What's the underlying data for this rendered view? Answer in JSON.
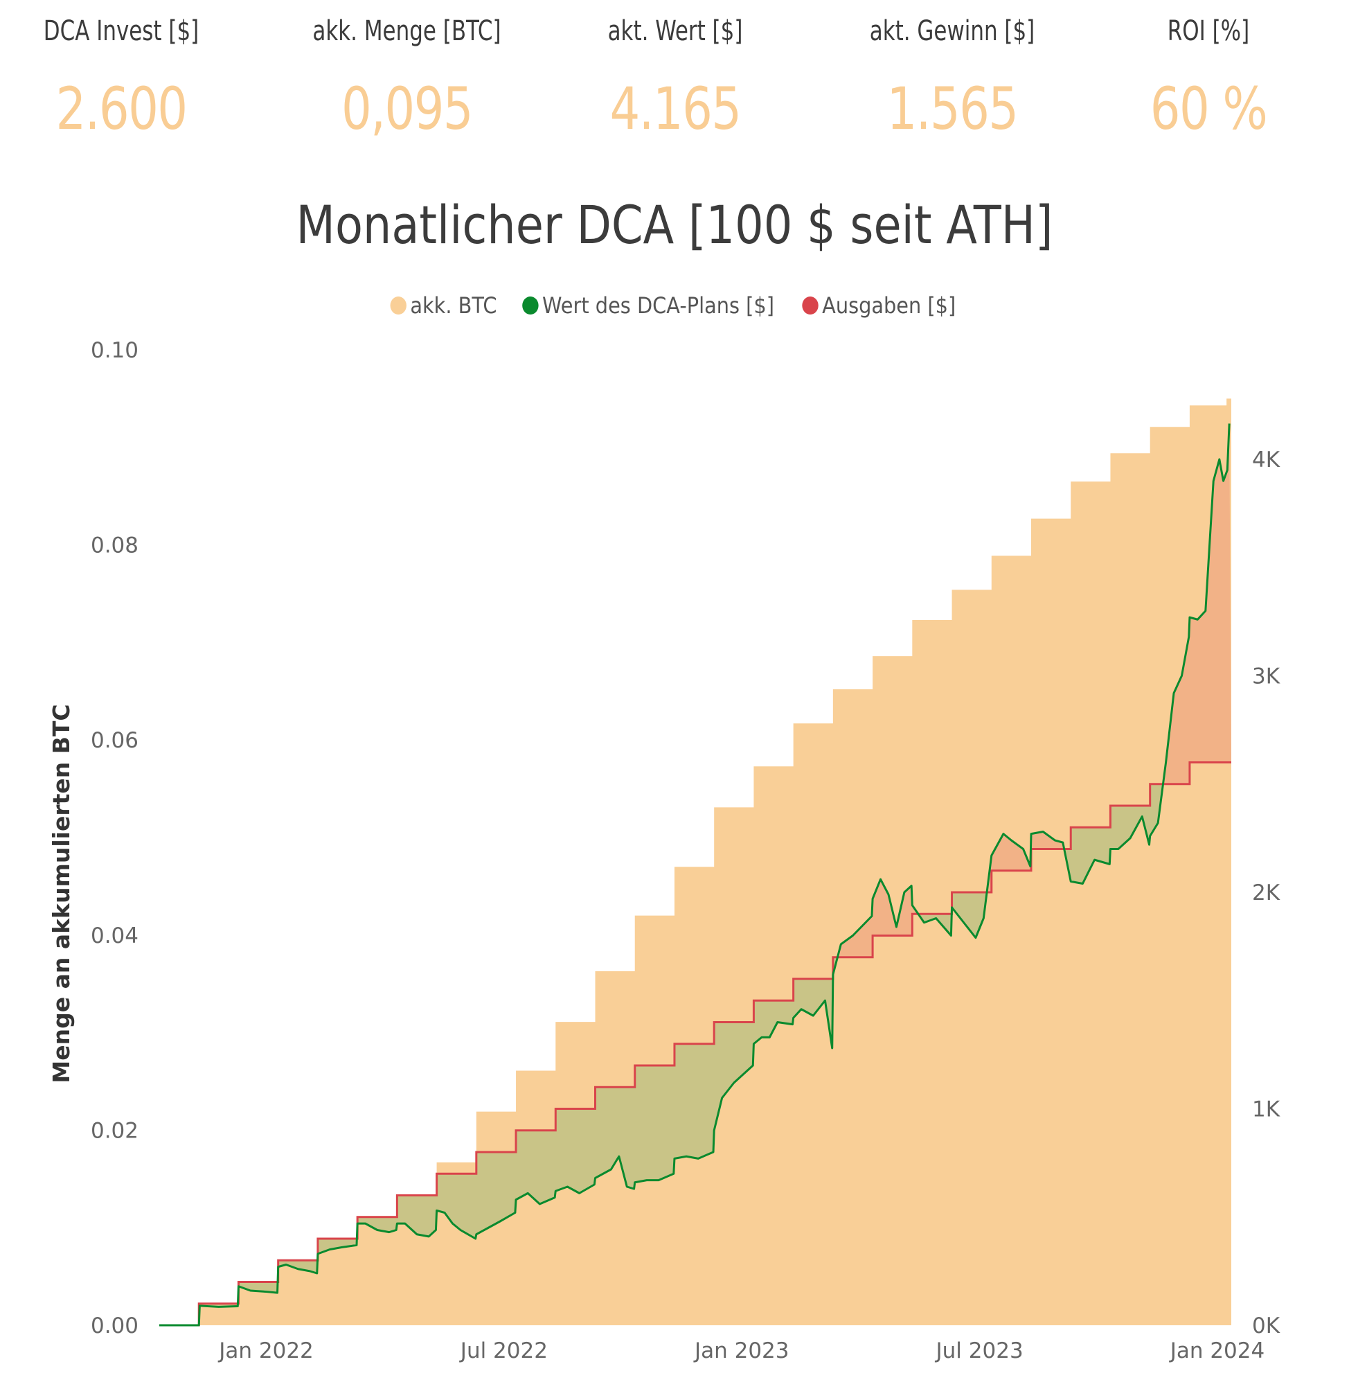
{
  "kpis": [
    {
      "label": "DCA Invest [$]",
      "value": "2.600"
    },
    {
      "label": "akk. Menge [BTC]",
      "value": "0,095"
    },
    {
      "label": "akt. Wert [$]",
      "value": "4.165"
    },
    {
      "label": "akt. Gewinn [$]",
      "value": "1.565"
    },
    {
      "label": "ROI [%]",
      "value": "60 %"
    }
  ],
  "colors": {
    "btc_area": "#f9cf97",
    "value_line": "#0a8a2e",
    "spend_line": "#d9444b",
    "loss_fill": "#f2b287",
    "gain_fill": "#c9c487",
    "kpi_value": "#f9cd94"
  },
  "chart_data": {
    "type": "area",
    "title": "Monatlicher DCA [100 $ seit ATH]",
    "legend": {
      "position": "top-center",
      "items": [
        {
          "name": "akk. BTC",
          "color": "#f9cf97"
        },
        {
          "name": "Wert des DCA-Plans [$]",
          "color": "#0a8a2e"
        },
        {
          "name": "Ausgaben [$]",
          "color": "#d9444b"
        }
      ]
    },
    "ylabel": "Menge an akkumulierten BTC",
    "y_left": {
      "min": 0,
      "max": 0.1,
      "ticks": [
        "0.00",
        "0.02",
        "0.04",
        "0.06",
        "0.08",
        "0.10"
      ],
      "tick_values": [
        0,
        0.02,
        0.04,
        0.06,
        0.08,
        0.1
      ]
    },
    "y_right": {
      "min": 0,
      "max": 4500,
      "ticks": [
        "0K",
        "1K",
        "2K",
        "3K",
        "4K"
      ],
      "tick_values": [
        0,
        1000,
        2000,
        3000,
        4000
      ]
    },
    "x_ticks": [
      {
        "label": "Jan 2022",
        "month": 1.7
      },
      {
        "label": "Jul 2022",
        "month": 7.7
      },
      {
        "label": "Jan 2023",
        "month": 13.7
      },
      {
        "label": "Jul 2023",
        "month": 19.7
      },
      {
        "label": "Jan 2024",
        "month": 25.7
      }
    ],
    "x_range_months": [
      -1,
      26.05
    ],
    "months": [
      0,
      1,
      2,
      3,
      4,
      5,
      6,
      7,
      8,
      9,
      10,
      11,
      12,
      13,
      14,
      15,
      16,
      17,
      18,
      19,
      20,
      21,
      22,
      23,
      24,
      25
    ],
    "series": [
      {
        "name": "akk. BTC",
        "axis": "left",
        "values": [
          0.0021,
          0.0044,
          0.0067,
          0.0088,
          0.0112,
          0.0134,
          0.0167,
          0.0219,
          0.0261,
          0.0311,
          0.0363,
          0.042,
          0.047,
          0.0531,
          0.0573,
          0.0617,
          0.0652,
          0.0686,
          0.0723,
          0.0754,
          0.0789,
          0.0827,
          0.0865,
          0.0894,
          0.0921,
          0.0943
        ],
        "final": 0.095
      },
      {
        "name": "Ausgaben [$]",
        "axis": "right",
        "values": [
          100,
          200,
          300,
          400,
          500,
          600,
          700,
          800,
          900,
          1000,
          1100,
          1200,
          1300,
          1400,
          1500,
          1600,
          1700,
          1800,
          1900,
          2000,
          2100,
          2200,
          2300,
          2400,
          2500,
          2600
        ]
      },
      {
        "name": "Wert des DCA-Plans [$]",
        "axis": "right",
        "points": [
          [
            -1,
            0
          ],
          [
            0,
            0
          ],
          [
            0.02,
            90
          ],
          [
            0.5,
            85
          ],
          [
            0.98,
            88
          ],
          [
            1.0,
            180
          ],
          [
            1.3,
            160
          ],
          [
            1.7,
            155
          ],
          [
            1.98,
            150
          ],
          [
            2.0,
            270
          ],
          [
            2.2,
            280
          ],
          [
            2.5,
            260
          ],
          [
            2.8,
            250
          ],
          [
            2.98,
            240
          ],
          [
            3.0,
            330
          ],
          [
            3.3,
            350
          ],
          [
            3.6,
            360
          ],
          [
            3.98,
            370
          ],
          [
            4.0,
            470
          ],
          [
            4.2,
            470
          ],
          [
            4.5,
            440
          ],
          [
            4.8,
            430
          ],
          [
            4.98,
            440
          ],
          [
            5.0,
            470
          ],
          [
            5.2,
            470
          ],
          [
            5.5,
            420
          ],
          [
            5.8,
            410
          ],
          [
            5.98,
            440
          ],
          [
            6.0,
            530
          ],
          [
            6.2,
            520
          ],
          [
            6.4,
            470
          ],
          [
            6.6,
            440
          ],
          [
            6.98,
            400
          ],
          [
            7.0,
            420
          ],
          [
            7.3,
            450
          ],
          [
            7.6,
            480
          ],
          [
            7.98,
            520
          ],
          [
            8.0,
            580
          ],
          [
            8.3,
            610
          ],
          [
            8.6,
            560
          ],
          [
            8.98,
            590
          ],
          [
            9.0,
            620
          ],
          [
            9.3,
            640
          ],
          [
            9.6,
            610
          ],
          [
            9.98,
            650
          ],
          [
            10.0,
            680
          ],
          [
            10.2,
            700
          ],
          [
            10.4,
            720
          ],
          [
            10.6,
            780
          ],
          [
            10.8,
            640
          ],
          [
            10.98,
            630
          ],
          [
            11.0,
            660
          ],
          [
            11.3,
            670
          ],
          [
            11.6,
            670
          ],
          [
            11.98,
            700
          ],
          [
            12.0,
            770
          ],
          [
            12.3,
            780
          ],
          [
            12.6,
            770
          ],
          [
            12.98,
            800
          ],
          [
            13.0,
            900
          ],
          [
            13.2,
            1050
          ],
          [
            13.5,
            1120
          ],
          [
            13.98,
            1200
          ],
          [
            14.0,
            1300
          ],
          [
            14.2,
            1330
          ],
          [
            14.4,
            1330
          ],
          [
            14.6,
            1400
          ],
          [
            14.98,
            1390
          ],
          [
            15.0,
            1420
          ],
          [
            15.2,
            1460
          ],
          [
            15.5,
            1430
          ],
          [
            15.8,
            1500
          ],
          [
            15.98,
            1280
          ],
          [
            16.0,
            1620
          ],
          [
            16.2,
            1760
          ],
          [
            16.5,
            1800
          ],
          [
            16.98,
            1890
          ],
          [
            17.0,
            1970
          ],
          [
            17.2,
            2060
          ],
          [
            17.4,
            1990
          ],
          [
            17.6,
            1840
          ],
          [
            17.8,
            2000
          ],
          [
            17.98,
            2030
          ],
          [
            18.0,
            1940
          ],
          [
            18.3,
            1860
          ],
          [
            18.6,
            1880
          ],
          [
            18.98,
            1800
          ],
          [
            19.0,
            1930
          ],
          [
            19.3,
            1860
          ],
          [
            19.6,
            1790
          ],
          [
            19.8,
            1880
          ],
          [
            20.0,
            2170
          ],
          [
            20.3,
            2270
          ],
          [
            20.5,
            2240
          ],
          [
            20.8,
            2200
          ],
          [
            20.98,
            2120
          ],
          [
            21.0,
            2270
          ],
          [
            21.3,
            2280
          ],
          [
            21.6,
            2240
          ],
          [
            21.8,
            2230
          ],
          [
            22.0,
            2050
          ],
          [
            22.3,
            2040
          ],
          [
            22.6,
            2150
          ],
          [
            22.98,
            2130
          ],
          [
            23.0,
            2200
          ],
          [
            23.2,
            2200
          ],
          [
            23.5,
            2250
          ],
          [
            23.8,
            2350
          ],
          [
            23.98,
            2220
          ],
          [
            24.0,
            2260
          ],
          [
            24.2,
            2320
          ],
          [
            24.4,
            2600
          ],
          [
            24.6,
            2920
          ],
          [
            24.8,
            3000
          ],
          [
            24.98,
            3180
          ],
          [
            25.0,
            3270
          ],
          [
            25.2,
            3260
          ],
          [
            25.4,
            3300
          ],
          [
            25.6,
            3900
          ],
          [
            25.75,
            4000
          ],
          [
            25.85,
            3900
          ],
          [
            25.95,
            3950
          ],
          [
            26.0,
            4165
          ]
        ],
        "final": 4165
      }
    ]
  }
}
